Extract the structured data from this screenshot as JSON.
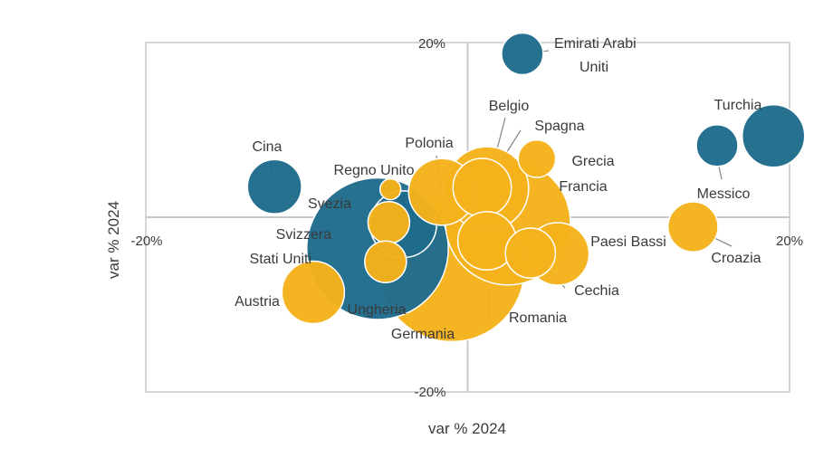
{
  "chart_data": {
    "type": "scatter",
    "title": "",
    "xlabel": "var % 2024",
    "ylabel": "var % 2024",
    "xlim": [
      -20,
      20
    ],
    "ylim": [
      -20,
      20
    ],
    "x_ticks": [
      {
        "value": -20,
        "label": "-20%"
      },
      {
        "value": 20,
        "label": "20%"
      }
    ],
    "y_ticks": [
      {
        "value": 20,
        "label": "20%"
      },
      {
        "value": -20,
        "label": "-20%"
      }
    ],
    "colors": {
      "extra_ue": "#1f6b8c",
      "ue": "#f5b21b"
    },
    "series": [
      {
        "name": "Emirati Arabi Uniti",
        "x": 3.4,
        "y": 18.7,
        "size": 1.0,
        "group": "extra_ue"
      },
      {
        "name": "Turchia",
        "x": 19.0,
        "y": 9.3,
        "size": 1.5,
        "group": "extra_ue"
      },
      {
        "name": "Messico",
        "x": 15.5,
        "y": 8.2,
        "size": 1.0,
        "group": "extra_ue"
      },
      {
        "name": "Cina",
        "x": -12.0,
        "y": 3.5,
        "size": 1.3,
        "group": "extra_ue"
      },
      {
        "name": "Svizzera",
        "x": -4.0,
        "y": -0.8,
        "size": 1.6,
        "group": "extra_ue"
      },
      {
        "name": "Stati Uniti",
        "x": -5.6,
        "y": -3.6,
        "size": 3.4,
        "group": "extra_ue"
      },
      {
        "name": "Belgio",
        "x": 1.2,
        "y": 3.3,
        "size": 2.0,
        "group": "ue"
      },
      {
        "name": "Spagna",
        "x": 0.9,
        "y": 3.4,
        "size": 1.4,
        "group": "ue"
      },
      {
        "name": "Grecia",
        "x": 4.3,
        "y": 6.7,
        "size": 0.9,
        "group": "ue"
      },
      {
        "name": "Francia",
        "x": 2.5,
        "y": -0.6,
        "size": 3.0,
        "group": "ue"
      },
      {
        "name": "Polonia",
        "x": -1.6,
        "y": 2.9,
        "size": 1.6,
        "group": "ue"
      },
      {
        "name": "Regno Unito",
        "x": -4.8,
        "y": 3.2,
        "size": 0.5,
        "group": "ue"
      },
      {
        "name": "Svezia",
        "x": -4.9,
        "y": -0.6,
        "size": 1.0,
        "group": "ue"
      },
      {
        "name": "Ungheria",
        "x": -5.1,
        "y": -5.1,
        "size": 1.0,
        "group": "ue"
      },
      {
        "name": "Austria",
        "x": -9.6,
        "y": -8.6,
        "size": 1.5,
        "group": "ue"
      },
      {
        "name": "Germania",
        "x": -1.0,
        "y": -5.9,
        "size": 3.5,
        "group": "ue"
      },
      {
        "name": "Romania",
        "x": 1.2,
        "y": -2.7,
        "size": 1.4,
        "group": "ue"
      },
      {
        "name": "Cechia",
        "x": 3.9,
        "y": -4.1,
        "size": 1.2,
        "group": "ue"
      },
      {
        "name": "Paesi Bassi",
        "x": 5.6,
        "y": -4.2,
        "size": 1.5,
        "group": "ue"
      },
      {
        "name": "Croazia",
        "x": 14.0,
        "y": -1.1,
        "size": 1.2,
        "group": "ue"
      }
    ]
  }
}
